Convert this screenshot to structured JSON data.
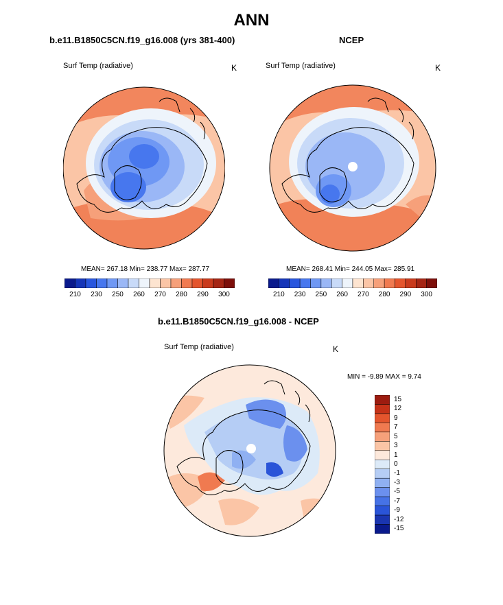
{
  "title": "ANN",
  "panels": [
    {
      "name": "model",
      "case_title": "b.e11.B1850C5CN.f19_g16.008 (yrs 381-400)",
      "variable": "Surf Temp (radiative)",
      "units": "K",
      "stats": "MEAN= 267.18  Min= 238.77  Max= 287.77",
      "has_pole_hole": false
    },
    {
      "name": "ncep",
      "case_title": "NCEP",
      "variable": "Surf Temp (radiative)",
      "units": "K",
      "stats": "MEAN= 268.41  Min= 244.05  Max= 285.91",
      "has_pole_hole": true
    }
  ],
  "colorbar_horizontal": {
    "colors": [
      "#0a1a8c",
      "#1535b8",
      "#2856de",
      "#4777ee",
      "#6f98f4",
      "#9ab7f6",
      "#c8daf8",
      "#eef4fb",
      "#fde4d0",
      "#fbc5a6",
      "#f6a07a",
      "#f07a50",
      "#e4552d",
      "#c93a1c",
      "#a52514",
      "#7d0f0a"
    ],
    "labels": [
      "210",
      "230",
      "250",
      "260",
      "270",
      "280",
      "290",
      "300"
    ]
  },
  "difference": {
    "case_title": "b.e11.B1850C5CN.f19_g16.008 - NCEP",
    "variable": "Surf Temp (radiative)",
    "units": "K",
    "stats": "MIN =  -9.89 MAX =   9.74",
    "colorbar": {
      "colors_top_to_bottom": [
        "#9c1c10",
        "#c53218",
        "#e4552d",
        "#f07a50",
        "#f6a07a",
        "#fbc5a6",
        "#fde9dc",
        "#dceaf8",
        "#b5cdf5",
        "#8fb0f2",
        "#6b90ee",
        "#4672e6",
        "#2a54d8",
        "#1a35b0",
        "#0a1a8c"
      ],
      "labels": [
        "15",
        "12",
        "9",
        "7",
        "5",
        "3",
        "1",
        "0",
        "-1",
        "-3",
        "-5",
        "-7",
        "-9",
        "-12",
        "-15"
      ]
    }
  }
}
